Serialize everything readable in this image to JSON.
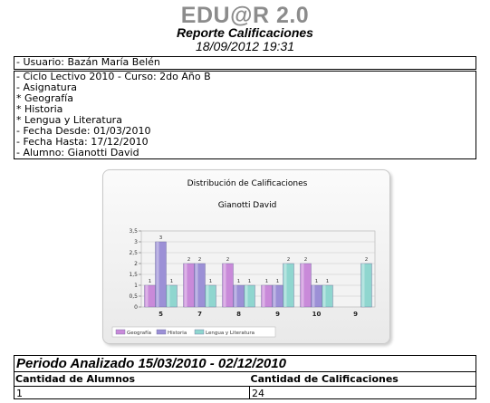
{
  "header": {
    "app_title": "EDU@R 2.0",
    "report_title": "Reporte Calificaciones",
    "datetime": "18/09/2012 19:31"
  },
  "user_box": {
    "line": "- Usuario: Bazán María Belén"
  },
  "info_box": {
    "lines": [
      "- Ciclo Lectivo 2010 - Curso: 2do Año B",
      "- Asignatura",
      " * Geografía",
      " * Historia",
      " * Lengua y Literatura",
      "- Fecha Desde: 01/03/2010",
      "- Fecha Hasta: 17/12/2010",
      "- Alumno: Gianotti David"
    ]
  },
  "chart_data": {
    "type": "bar",
    "title": "Distribución de Calificaciones",
    "subtitle": "Gianotti David",
    "xlabel": "",
    "ylabel": "",
    "ylim": [
      0,
      3.5
    ],
    "yticks": [
      "0",
      "0,5",
      "1",
      "1,5",
      "2",
      "2,5",
      "3",
      "3,5"
    ],
    "categories": [
      "5",
      "7",
      "8",
      "9",
      "10",
      "9"
    ],
    "series": [
      {
        "name": "Geografía",
        "color": "#c98ad9",
        "values": [
          1,
          2,
          2,
          1,
          2,
          0
        ]
      },
      {
        "name": "Historia",
        "color": "#9c90d6",
        "values": [
          3,
          2,
          1,
          1,
          1,
          0
        ]
      },
      {
        "name": "Lengua y Literatura",
        "color": "#8fd6cf",
        "values": [
          1,
          1,
          1,
          2,
          1,
          2
        ]
      }
    ],
    "legend_position": "bottom-left",
    "grid": true
  },
  "stats": {
    "period_label": "Periodo Analizado 15/03/2010 - 02/12/2010",
    "col1_header": "Cantidad de Alumnos",
    "col2_header": "Cantidad de Calificaciones",
    "col1_value": "1",
    "col2_value": "24"
  }
}
